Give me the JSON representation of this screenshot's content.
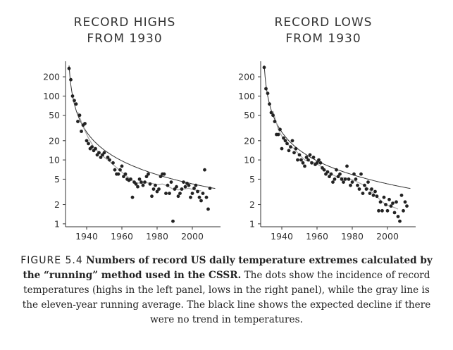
{
  "chart_data": [
    {
      "type": "scatter",
      "title": "RECORD HIGHS FROM 1930",
      "title_lines": [
        "RECORD HIGHS",
        "FROM 1930"
      ],
      "yscale": "log",
      "ylim": [
        0.9,
        350
      ],
      "xlim": [
        1928,
        2016
      ],
      "x_ticks": [
        1940,
        1960,
        1980,
        2000
      ],
      "y_ticks": [
        1,
        2,
        5,
        10,
        20,
        50,
        100,
        200
      ],
      "grid": false,
      "series": [],
      "points": [
        [
          1930,
          270
        ],
        [
          1931,
          180
        ],
        [
          1932,
          100
        ],
        [
          1933,
          85
        ],
        [
          1934,
          75
        ],
        [
          1935,
          40
        ],
        [
          1936,
          50
        ],
        [
          1937,
          28
        ],
        [
          1938,
          35
        ],
        [
          1939,
          37
        ],
        [
          1940,
          20
        ],
        [
          1941,
          18
        ],
        [
          1942,
          15
        ],
        [
          1943,
          16
        ],
        [
          1944,
          14
        ],
        [
          1945,
          15
        ],
        [
          1946,
          12
        ],
        [
          1947,
          13
        ],
        [
          1948,
          11
        ],
        [
          1949,
          12
        ],
        [
          1950,
          13
        ],
        [
          1952,
          11
        ],
        [
          1953,
          10
        ],
        [
          1955,
          9
        ],
        [
          1956,
          7
        ],
        [
          1957,
          6
        ],
        [
          1958,
          6
        ],
        [
          1959,
          7
        ],
        [
          1960,
          8
        ],
        [
          1961,
          5.5
        ],
        [
          1962,
          6
        ],
        [
          1963,
          5
        ],
        [
          1964,
          4.8
        ],
        [
          1965,
          5
        ],
        [
          1966,
          2.6
        ],
        [
          1967,
          4.5
        ],
        [
          1968,
          4.2
        ],
        [
          1969,
          3.8
        ],
        [
          1970,
          5
        ],
        [
          1971,
          4.5
        ],
        [
          1972,
          4
        ],
        [
          1973,
          4.5
        ],
        [
          1974,
          5.5
        ],
        [
          1975,
          6
        ],
        [
          1976,
          4.2
        ],
        [
          1977,
          2.7
        ],
        [
          1978,
          3.5
        ],
        [
          1979,
          4
        ],
        [
          1980,
          3.2
        ],
        [
          1981,
          3.5
        ],
        [
          1982,
          5.5
        ],
        [
          1983,
          6
        ],
        [
          1984,
          6
        ],
        [
          1985,
          3
        ],
        [
          1986,
          4
        ],
        [
          1987,
          3
        ],
        [
          1988,
          4.5
        ],
        [
          1989,
          1.1
        ],
        [
          1990,
          3.5
        ],
        [
          1991,
          3.8
        ],
        [
          1992,
          2.7
        ],
        [
          1993,
          3
        ],
        [
          1994,
          3.5
        ],
        [
          1995,
          4.5
        ],
        [
          1996,
          3.8
        ],
        [
          1997,
          4.3
        ],
        [
          1998,
          4
        ],
        [
          1999,
          2.6
        ],
        [
          2000,
          3
        ],
        [
          2001,
          3.6
        ],
        [
          2002,
          4
        ],
        [
          2003,
          3.2
        ],
        [
          2004,
          2.6
        ],
        [
          2005,
          2.3
        ],
        [
          2006,
          3
        ],
        [
          2007,
          7
        ],
        [
          2008,
          2.6
        ],
        [
          2009,
          1.7
        ],
        [
          2010,
          3.6
        ]
      ],
      "running_average": [
        [
          1935,
          56
        ],
        [
          1938,
          33
        ],
        [
          1941,
          22
        ],
        [
          1944,
          16
        ],
        [
          1947,
          13
        ],
        [
          1950,
          11
        ],
        [
          1953,
          9.5
        ],
        [
          1956,
          8
        ],
        [
          1959,
          6.8
        ],
        [
          1962,
          5.8
        ],
        [
          1965,
          5
        ],
        [
          1968,
          4.4
        ],
        [
          1971,
          4.3
        ],
        [
          1974,
          4.4
        ],
        [
          1977,
          4.3
        ],
        [
          1980,
          4.1
        ],
        [
          1983,
          4.2
        ],
        [
          1986,
          3.9
        ],
        [
          1989,
          3.5
        ],
        [
          1992,
          3.4
        ],
        [
          1995,
          3.5
        ],
        [
          1998,
          3.6
        ],
        [
          2001,
          3.4
        ],
        [
          2004,
          3.3
        ],
        [
          2005,
          3.3
        ]
      ],
      "expected_decline": "N/(year-1929)",
      "expected_n": 300,
      "colors": {
        "dots": "#222222",
        "running_average": "#aaaaaa",
        "expected": "#333333"
      }
    },
    {
      "type": "scatter",
      "title": "RECORD LOWS FROM 1930",
      "title_lines": [
        "RECORD LOWS",
        "FROM 1930"
      ],
      "yscale": "log",
      "ylim": [
        0.9,
        350
      ],
      "xlim": [
        1928,
        2016
      ],
      "x_ticks": [
        1940,
        1960,
        1980,
        2000
      ],
      "y_ticks": [
        1,
        2,
        5,
        10,
        20,
        50,
        100,
        200
      ],
      "grid": false,
      "series": [],
      "points": [
        [
          1930,
          280
        ],
        [
          1931,
          130
        ],
        [
          1932,
          110
        ],
        [
          1933,
          75
        ],
        [
          1934,
          55
        ],
        [
          1935,
          50
        ],
        [
          1936,
          40
        ],
        [
          1937,
          25
        ],
        [
          1938,
          25
        ],
        [
          1939,
          30
        ],
        [
          1940,
          15
        ],
        [
          1941,
          22
        ],
        [
          1942,
          20
        ],
        [
          1943,
          18
        ],
        [
          1944,
          14
        ],
        [
          1945,
          16
        ],
        [
          1946,
          20
        ],
        [
          1947,
          13
        ],
        [
          1948,
          15
        ],
        [
          1949,
          10
        ],
        [
          1950,
          12
        ],
        [
          1951,
          10
        ],
        [
          1952,
          9
        ],
        [
          1953,
          8
        ],
        [
          1954,
          11
        ],
        [
          1955,
          10
        ],
        [
          1956,
          12
        ],
        [
          1957,
          9
        ],
        [
          1958,
          11
        ],
        [
          1959,
          8.5
        ],
        [
          1960,
          9
        ],
        [
          1961,
          10
        ],
        [
          1962,
          9
        ],
        [
          1963,
          7.5
        ],
        [
          1964,
          7
        ],
        [
          1965,
          6
        ],
        [
          1966,
          6.5
        ],
        [
          1967,
          5.5
        ],
        [
          1968,
          6
        ],
        [
          1969,
          4.5
        ],
        [
          1970,
          5
        ],
        [
          1971,
          7
        ],
        [
          1972,
          5.5
        ],
        [
          1973,
          6
        ],
        [
          1974,
          5
        ],
        [
          1975,
          4.5
        ],
        [
          1976,
          5
        ],
        [
          1977,
          8
        ],
        [
          1978,
          5
        ],
        [
          1979,
          4
        ],
        [
          1980,
          4.5
        ],
        [
          1981,
          6
        ],
        [
          1982,
          5
        ],
        [
          1983,
          4
        ],
        [
          1984,
          3.5
        ],
        [
          1985,
          6
        ],
        [
          1986,
          3
        ],
        [
          1987,
          4
        ],
        [
          1988,
          3.5
        ],
        [
          1989,
          4.5
        ],
        [
          1990,
          3
        ],
        [
          1991,
          3.5
        ],
        [
          1992,
          2.8
        ],
        [
          1993,
          3.2
        ],
        [
          1994,
          2.7
        ],
        [
          1995,
          1.6
        ],
        [
          1996,
          2.2
        ],
        [
          1997,
          1.6
        ],
        [
          1998,
          2.6
        ],
        [
          1999,
          2
        ],
        [
          2000,
          1.6
        ],
        [
          2001,
          2.4
        ],
        [
          2002,
          1.9
        ],
        [
          2003,
          2.1
        ],
        [
          2004,
          1.5
        ],
        [
          2005,
          2.2
        ],
        [
          2006,
          1.3
        ],
        [
          2007,
          1.1
        ],
        [
          2008,
          2.8
        ],
        [
          2009,
          1.6
        ],
        [
          2010,
          2.2
        ],
        [
          2011,
          1.9
        ]
      ],
      "running_average": [
        [
          1935,
          58
        ],
        [
          1938,
          30
        ],
        [
          1941,
          21
        ],
        [
          1944,
          17
        ],
        [
          1947,
          15
        ],
        [
          1950,
          12
        ],
        [
          1953,
          10
        ],
        [
          1956,
          9.5
        ],
        [
          1959,
          9
        ],
        [
          1962,
          8
        ],
        [
          1965,
          6.8
        ],
        [
          1968,
          6
        ],
        [
          1971,
          5.5
        ],
        [
          1974,
          5.3
        ],
        [
          1977,
          5.2
        ],
        [
          1980,
          4.9
        ],
        [
          1983,
          4.5
        ],
        [
          1986,
          4.1
        ],
        [
          1989,
          3.6
        ],
        [
          1992,
          3
        ],
        [
          1995,
          2.5
        ],
        [
          1998,
          2.1
        ],
        [
          2001,
          1.9
        ],
        [
          2004,
          1.8
        ],
        [
          2006,
          1.7
        ]
      ],
      "expected_decline": "N/(year-1929)",
      "expected_n": 300,
      "colors": {
        "dots": "#222222",
        "running_average": "#aaaaaa",
        "expected": "#333333"
      }
    }
  ],
  "caption": {
    "label": "FIGURE 5.4",
    "bold": "Numbers of record US daily temperature extremes calculated by the “running” method used in the CSSR.",
    "text": "The dots show the incidence of record temperatures (highs in the left panel, lows in the right panel), while the gray line is the eleven-year running average. The black line shows the expected decline if there were no trend in temperatures."
  }
}
